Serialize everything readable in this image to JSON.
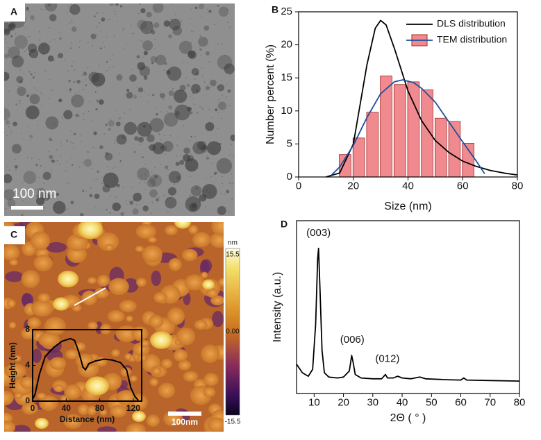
{
  "panels": {
    "labels": [
      "A",
      "B",
      "C",
      "D"
    ]
  },
  "tem_image": {
    "scale_bar": "100 nm"
  },
  "afm_image": {
    "scale_bar": "100nm",
    "colorbar": {
      "unit": "nm",
      "ticks": [
        15.5,
        {
          "value": 0,
          "label": "0.00"
        },
        -15.5
      ]
    }
  },
  "chart_data": [
    {
      "type": "bar",
      "x_label": "Size (nm)",
      "y_label": "Number percent (%)",
      "xlim": [
        0,
        80
      ],
      "xticks": [
        0,
        20,
        40,
        60,
        80
      ],
      "ylim": [
        0,
        25
      ],
      "yticks": [
        0,
        5,
        10,
        15,
        20,
        25
      ],
      "legend": "upper right",
      "series": [
        {
          "name": "DLS distribution",
          "type": "line",
          "color": "#000000",
          "x": [
            10,
            15,
            20,
            25,
            28,
            30,
            32,
            35,
            40,
            45,
            50,
            55,
            60,
            65,
            70,
            75,
            80
          ],
          "values": [
            0,
            0.6,
            5,
            17,
            22.5,
            23.7,
            23,
            19.5,
            13,
            8.5,
            5.5,
            3.7,
            2.4,
            1.6,
            1.0,
            0.6,
            0.3
          ]
        },
        {
          "name": "TEM distribution",
          "type": "bar",
          "color": "#f08a8e",
          "x": [
            17,
            22,
            27,
            32,
            37,
            42,
            47,
            52,
            57,
            62
          ],
          "values": [
            3.4,
            5.9,
            9.8,
            15.3,
            14.0,
            14.4,
            13.2,
            8.9,
            8.4,
            5.1
          ]
        },
        {
          "type": "line",
          "color": "#1f4e99",
          "x": [
            12,
            15,
            20,
            25,
            30,
            35,
            38,
            42,
            45,
            50,
            55,
            60,
            65,
            68
          ],
          "values": [
            0.3,
            1.5,
            4.8,
            9,
            12.6,
            14.4,
            14.7,
            14.3,
            13.4,
            11.3,
            8.3,
            5.3,
            2.4,
            0.5
          ]
        }
      ]
    },
    {
      "type": "line",
      "x_label": "Distance (nm)",
      "y_label": "Height (nm)",
      "xlim": [
        0,
        130
      ],
      "xticks": [
        0,
        40,
        80,
        120
      ],
      "ylim": [
        0,
        8
      ],
      "yticks": [
        0,
        4,
        8
      ],
      "series": [
        {
          "color": "#000000",
          "x": [
            0,
            3,
            8,
            15,
            25,
            35,
            45,
            50,
            55,
            60,
            63,
            67,
            75,
            85,
            95,
            105,
            112,
            117,
            122,
            126
          ],
          "values": [
            0.2,
            0.8,
            3,
            5,
            6,
            6.7,
            7,
            6.8,
            5.5,
            3.8,
            3.5,
            4.2,
            4.5,
            4.7,
            4.6,
            4.3,
            3.5,
            1.5,
            0.5,
            0.1
          ]
        }
      ]
    },
    {
      "type": "line",
      "x_label": "2Θ ( ° )",
      "y_label": "Intensity (a.u.)",
      "xlim": [
        4,
        80
      ],
      "xticks": [
        10,
        20,
        30,
        40,
        50,
        60,
        70,
        80
      ],
      "ylim": [
        0,
        100
      ],
      "series": [
        {
          "color": "#000000",
          "x": [
            4,
            6,
            8,
            9.5,
            10.5,
            11.2,
            11.5,
            12,
            12.7,
            13.5,
            15,
            18,
            20,
            22,
            22.8,
            23.3,
            24,
            26,
            30,
            33,
            34.3,
            35,
            37,
            38.5,
            40,
            43,
            46,
            48,
            55,
            60,
            61,
            62,
            70,
            80
          ],
          "values": [
            17,
            12,
            10,
            14,
            40,
            78,
            84,
            60,
            25,
            12,
            9.5,
            9,
            9.5,
            13,
            22,
            18,
            11,
            9,
            8.5,
            8.5,
            11,
            9,
            9,
            10,
            9,
            8.5,
            9.5,
            8.5,
            8,
            7.8,
            9,
            7.8,
            7.5,
            7.2
          ]
        }
      ],
      "annotations": [
        {
          "text": "(003)",
          "x": 11.5
        },
        {
          "text": "(006)",
          "x": 23
        },
        {
          "text": "(012)",
          "x": 35
        }
      ]
    }
  ]
}
